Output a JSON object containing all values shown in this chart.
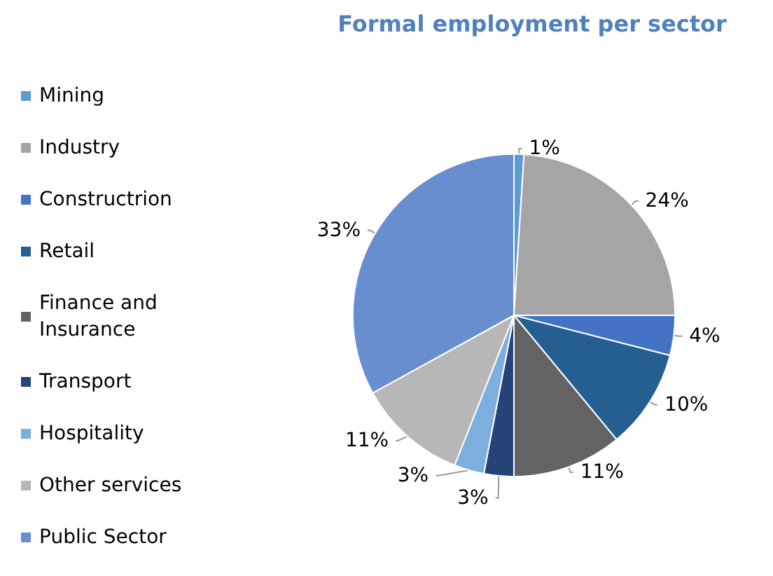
{
  "chart_data": {
    "type": "pie",
    "title": "Formal employment per sector",
    "categories": [
      "Mining",
      "Industry",
      "Constructrion",
      "Retail",
      "Finance and Insurance",
      "Transport",
      "Hospitality",
      "Other services",
      "Public Sector"
    ],
    "values": [
      1,
      24,
      4,
      10,
      11,
      3,
      3,
      11,
      33
    ],
    "colors": [
      "#5b9bd5",
      "#a5a5a5",
      "#4472c4",
      "#255e91",
      "#636363",
      "#264478",
      "#7cafdd",
      "#b7b7b7",
      "#698ed0"
    ],
    "value_labels": [
      "1%",
      "24%",
      "4%",
      "10%",
      "11%",
      "3%",
      "3%",
      "11%",
      "33%"
    ],
    "legend": "left"
  }
}
